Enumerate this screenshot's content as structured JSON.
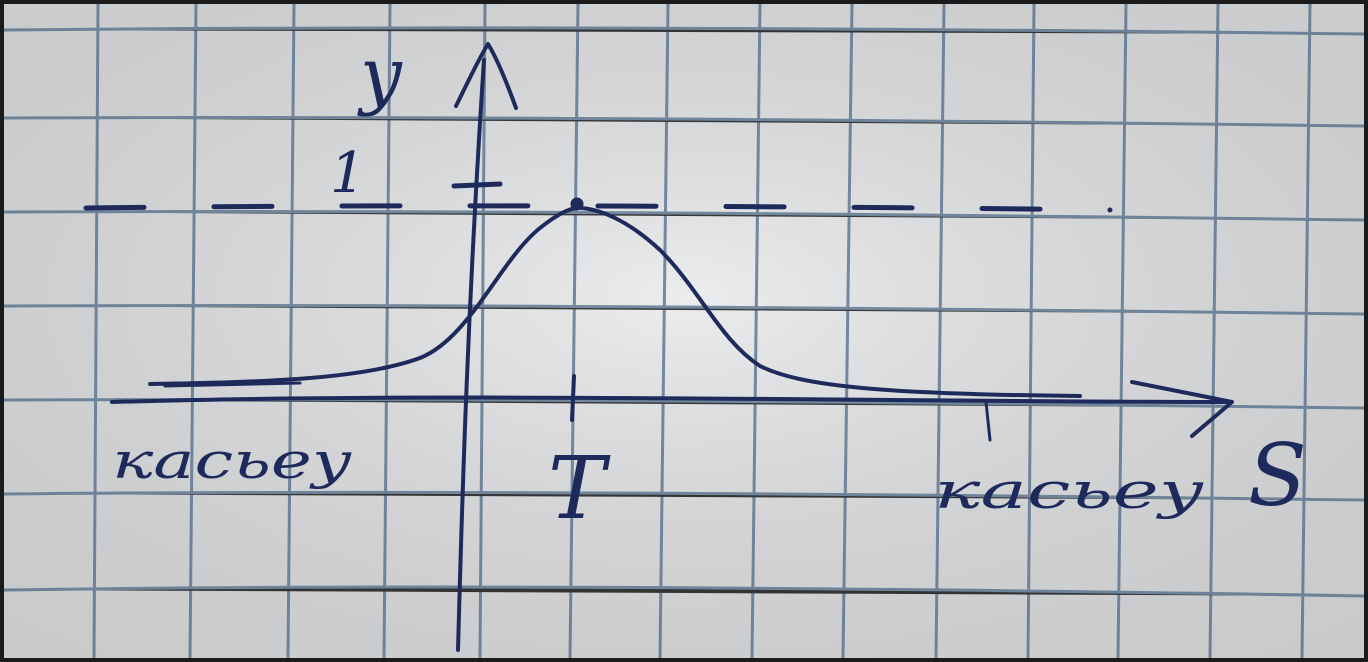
{
  "diagram": {
    "y_axis_label": "y",
    "x_axis_label": "S",
    "y_tick_label": "1",
    "x_tick_label": "T",
    "left_word": "касьеу",
    "right_word": "касьеу"
  },
  "colors": {
    "paper": "#e4e6e8",
    "grid_line": "#4f6a86",
    "ink": "#1f2a5c",
    "frame": "#1b1b1b"
  },
  "curve": {
    "type": "bell",
    "peak_value": 1,
    "peak_at": "T",
    "asymptote_value": 1,
    "asymptote_style": "dashed"
  }
}
